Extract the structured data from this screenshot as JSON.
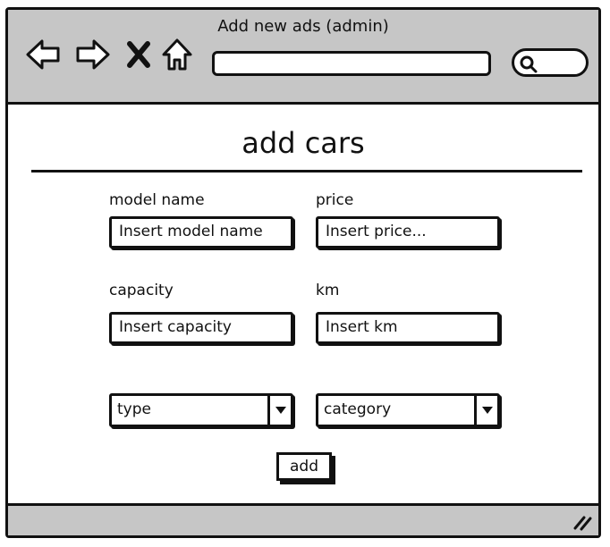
{
  "window": {
    "title": "Add new ads (admin)",
    "icons": [
      "back-arrow-icon",
      "forward-arrow-icon",
      "close-x-icon",
      "home-icon",
      "search-icon",
      "resize-grip-icon"
    ]
  },
  "form": {
    "heading": "add cars",
    "fields": {
      "model_name": {
        "label": "model name",
        "placeholder": "Insert model name"
      },
      "price": {
        "label": "price",
        "placeholder": "Insert price..."
      },
      "capacity": {
        "label": "capacity",
        "placeholder": "Insert capacity"
      },
      "km": {
        "label": "km",
        "placeholder": "Insert km"
      }
    },
    "selects": {
      "type": "type",
      "category": "category"
    },
    "submit_label": "add"
  },
  "colors": {
    "chrome_gray": "#c6c6c6",
    "ink": "#111111",
    "background": "#ffffff"
  }
}
